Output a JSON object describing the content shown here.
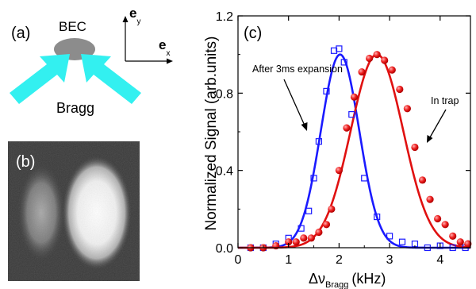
{
  "panel_a": {
    "label": "(a)",
    "bec_label": "BEC",
    "bragg_label": "Bragg",
    "axis_y": "e",
    "axis_y_sub": "y",
    "axis_x": "e",
    "axis_x_sub": "x",
    "colors": {
      "bec": "#8c8c8c",
      "beam": "#33f0f0"
    }
  },
  "panel_b": {
    "label": "(b)"
  },
  "panel_c": {
    "label": "(c)",
    "annotation_left": "After 3ms expansion",
    "annotation_right": "In trap"
  },
  "chart_data": {
    "type": "scatter",
    "title": "",
    "xlabel": "Δν",
    "xlabel_sub": "Bragg",
    "xlabel_unit": "(kHz)",
    "ylabel": "Normalized Signal (arb.units)",
    "xlim": [
      0,
      4.6
    ],
    "ylim": [
      0,
      1.2
    ],
    "xticks": [
      0,
      1,
      2,
      3,
      4
    ],
    "yticks": [
      0.0,
      0.4,
      0.8,
      1.2
    ],
    "ytick_labels": [
      "0.0",
      "0.4",
      "0.8",
      "1.2"
    ],
    "series": [
      {
        "marker": "open-square",
        "color": "#1a1aff",
        "x": [
          0.25,
          0.5,
          0.75,
          1.0,
          1.25,
          1.4,
          1.5,
          1.6,
          1.75,
          1.9,
          2.0,
          2.1,
          2.25,
          2.5,
          2.75,
          3.0,
          3.25,
          3.5,
          3.75,
          4.0,
          4.25,
          4.5
        ],
        "y": [
          0.0,
          0.0,
          0.02,
          0.05,
          0.1,
          0.19,
          0.36,
          0.55,
          0.81,
          1.02,
          1.03,
          0.96,
          0.69,
          0.36,
          0.16,
          0.06,
          0.03,
          0.02,
          0.0,
          0.01,
          0.0,
          0.0
        ],
        "fit": {
          "shape": "gaussian",
          "center": 2.02,
          "sigma": 0.38,
          "amplitude": 1.0
        }
      },
      {
        "marker": "filled-circle",
        "color": "#e01010",
        "x": [
          0.25,
          0.5,
          0.75,
          1.0,
          1.15,
          1.3,
          1.45,
          1.6,
          1.75,
          1.85,
          2.0,
          2.15,
          2.3,
          2.45,
          2.6,
          2.75,
          2.9,
          3.05,
          3.2,
          3.35,
          3.5,
          3.65,
          3.8,
          3.95,
          4.1,
          4.25,
          4.4,
          4.55
        ],
        "y": [
          0.0,
          0.0,
          0.01,
          0.03,
          0.03,
          0.05,
          0.05,
          0.08,
          0.12,
          0.2,
          0.4,
          0.62,
          0.78,
          0.91,
          0.98,
          1.0,
          0.97,
          0.92,
          0.82,
          0.72,
          0.52,
          0.35,
          0.25,
          0.15,
          0.12,
          0.06,
          0.03,
          0.02
        ],
        "fit": {
          "shape": "gaussian",
          "center": 2.75,
          "sigma": 0.52,
          "amplitude": 1.0
        }
      }
    ]
  }
}
